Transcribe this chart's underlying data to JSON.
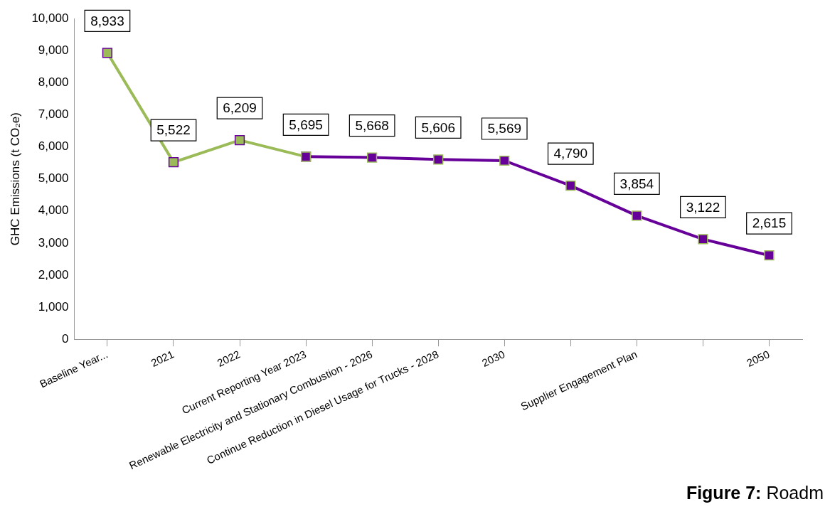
{
  "chart_data": {
    "type": "line",
    "ylabel": "GHC Emissions (t CO₂e)",
    "categories": [
      "Baseline Year...",
      "2021",
      "2022",
      "Current Reporting Year 2023",
      "Renewable Electricity and Stationary Combustion - 2026",
      "Continue Reduction in Diesel Usage for Trucks - 2028",
      "2030",
      null,
      "Supplier Engagement Plan",
      null,
      "2050"
    ],
    "series": [
      {
        "color": "#9bbb59",
        "values": [
          8933,
          5522,
          6209,
          5695,
          null,
          null,
          null,
          null,
          null,
          null,
          null
        ],
        "value_labels": [
          "8,933",
          "5,522",
          "6,209",
          "5,695",
          null,
          null,
          null,
          null,
          null,
          null,
          null
        ]
      },
      {
        "color": "#660099",
        "values": [
          null,
          null,
          null,
          5695,
          5668,
          5606,
          5569,
          4790,
          3854,
          3122,
          2615
        ],
        "value_labels": [
          null,
          null,
          null,
          null,
          "5,668",
          "5,606",
          "5,569",
          "4,790",
          "3,854",
          "3,122",
          "2,615"
        ]
      }
    ],
    "ylim": [
      0,
      10000
    ],
    "yticks": [
      {
        "value": 0,
        "label": "0"
      },
      {
        "value": 1000,
        "label": "1,000"
      },
      {
        "value": 2000,
        "label": "2,000"
      },
      {
        "value": 3000,
        "label": "3,000"
      },
      {
        "value": 4000,
        "label": "4,000"
      },
      {
        "value": 5000,
        "label": "5,000"
      },
      {
        "value": 6000,
        "label": "6,000"
      },
      {
        "value": 7000,
        "label": "7,000"
      },
      {
        "value": 8000,
        "label": "8,000"
      },
      {
        "value": 9000,
        "label": "9,000"
      },
      {
        "value": 10000,
        "label": "10,000"
      }
    ],
    "grid": false,
    "legend": false,
    "marker": "square",
    "line_style": "solid",
    "annotations": [
      "Figure 7: Roadm"
    ]
  }
}
